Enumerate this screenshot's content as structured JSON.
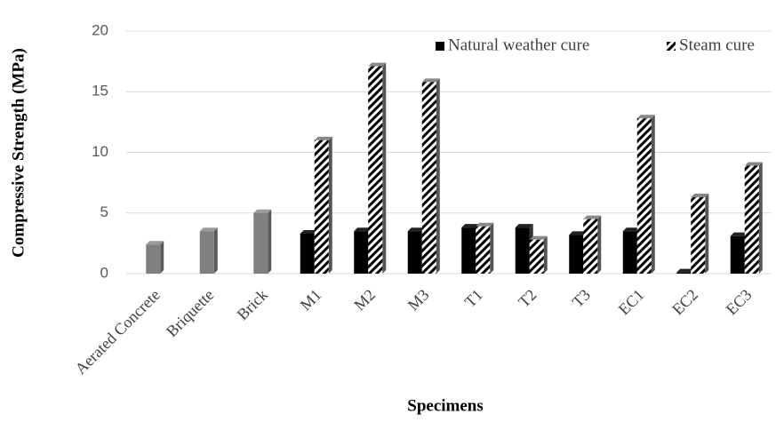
{
  "chart_data": {
    "type": "bar",
    "x_label": "Specimens",
    "y_label": "Compressive Strength (MPa)",
    "categories": [
      "Aerated Concrete",
      "Briquette",
      "Brick",
      "M1",
      "M2",
      "M3",
      "T1",
      "T2",
      "T3",
      "EC1",
      "EC2",
      "EC3"
    ],
    "reference": {
      "color": "#808080",
      "values": [
        2.4,
        3.5,
        5.0,
        null,
        null,
        null,
        null,
        null,
        null,
        null,
        null,
        null
      ]
    },
    "series": [
      {
        "name": "Natural weather cure",
        "color": "#000000",
        "values": [
          null,
          null,
          null,
          3.3,
          3.5,
          3.5,
          3.8,
          3.8,
          3.2,
          3.5,
          0.1,
          3.1
        ]
      },
      {
        "name": "Steam cure",
        "color": "hatch",
        "values": [
          null,
          null,
          null,
          11.0,
          17.1,
          15.8,
          3.9,
          2.8,
          4.5,
          12.8,
          6.3,
          8.9
        ]
      }
    ],
    "ylim": [
      0,
      20
    ],
    "yticks": [
      0,
      5,
      10,
      15,
      20
    ],
    "grid": true,
    "legend": "top-right"
  }
}
